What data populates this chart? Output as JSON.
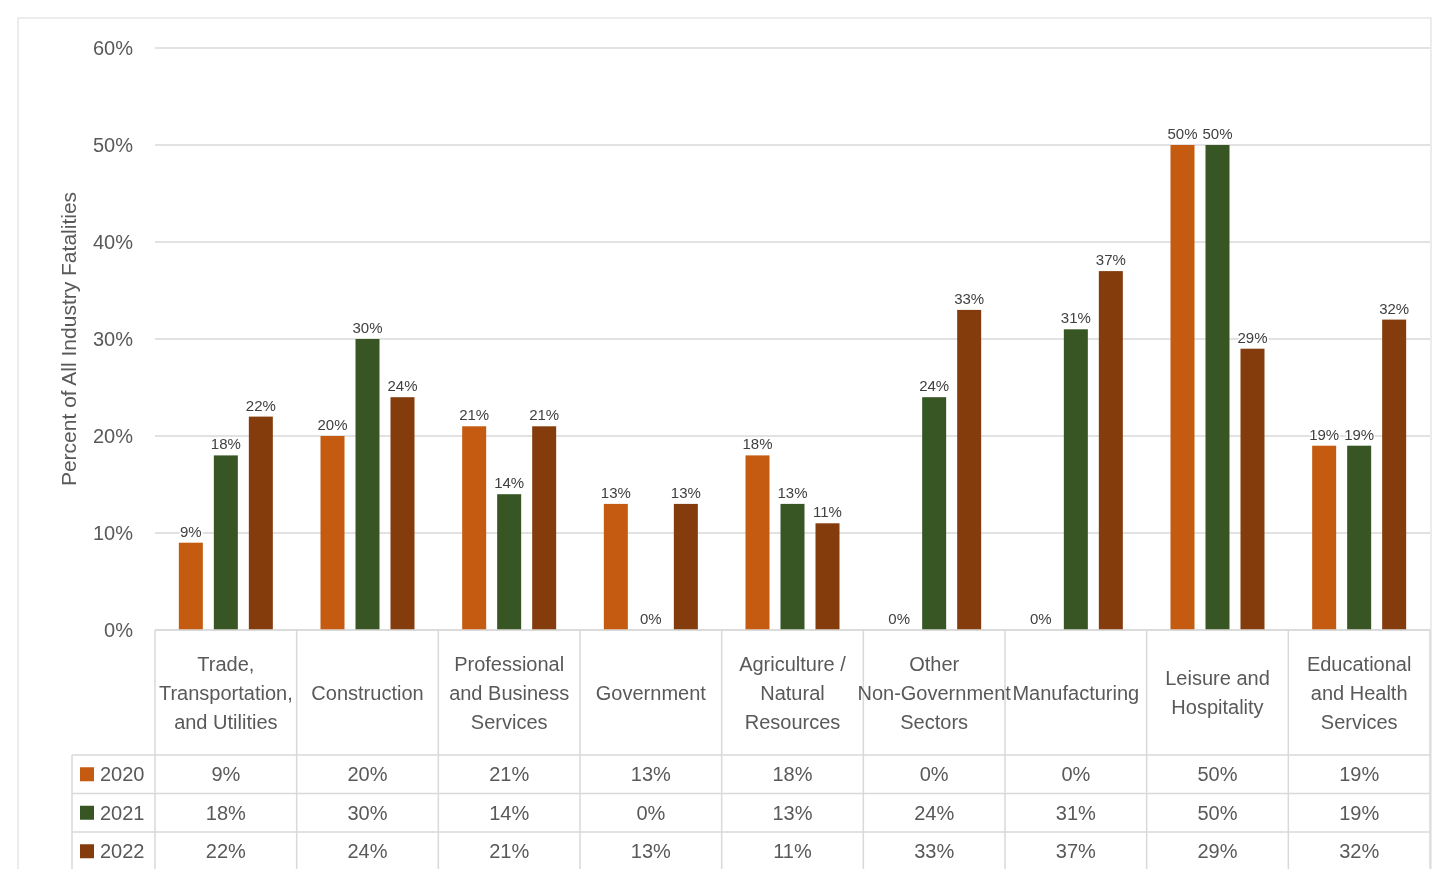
{
  "chart_data": {
    "type": "bar",
    "ylabel": "Percent of All Industry Fatalities",
    "categories": [
      "Trade, Transportation, and Utilities",
      "Construction",
      "Professional and Business Services",
      "Government",
      "Agriculture / Natural Resources",
      "Other Non-Government Sectors",
      "Manufacturing",
      "Leisure and Hospitality",
      "Educational and Health Services"
    ],
    "series": [
      {
        "name": "2020",
        "color": "#c55a11",
        "values": [
          9,
          20,
          21,
          13,
          18,
          0,
          0,
          50,
          19
        ],
        "value_labels": [
          "9%",
          "20%",
          "21%",
          "13%",
          "18%",
          "0%",
          "0%",
          "50%",
          "19%"
        ]
      },
      {
        "name": "2021",
        "color": "#375623",
        "values": [
          18,
          30,
          14,
          0,
          13,
          24,
          31,
          50,
          19
        ],
        "value_labels": [
          "18%",
          "30%",
          "14%",
          "0%",
          "13%",
          "24%",
          "31%",
          "50%",
          "19%"
        ]
      },
      {
        "name": "2022",
        "color": "#843c0c",
        "values": [
          22,
          24,
          21,
          13,
          11,
          33,
          37,
          29,
          32
        ],
        "value_labels": [
          "22%",
          "24%",
          "21%",
          "13%",
          "11%",
          "33%",
          "37%",
          "29%",
          "32%"
        ]
      }
    ],
    "ylim": [
      0,
      60
    ],
    "yticks": [
      {
        "value": 0,
        "label": "0%"
      },
      {
        "value": 10,
        "label": "10%"
      },
      {
        "value": 20,
        "label": "20%"
      },
      {
        "value": 30,
        "label": "30%"
      },
      {
        "value": 40,
        "label": "40%"
      },
      {
        "value": 50,
        "label": "50%"
      },
      {
        "value": 60,
        "label": "60%"
      }
    ],
    "grid": "y",
    "legend": "bottom"
  }
}
